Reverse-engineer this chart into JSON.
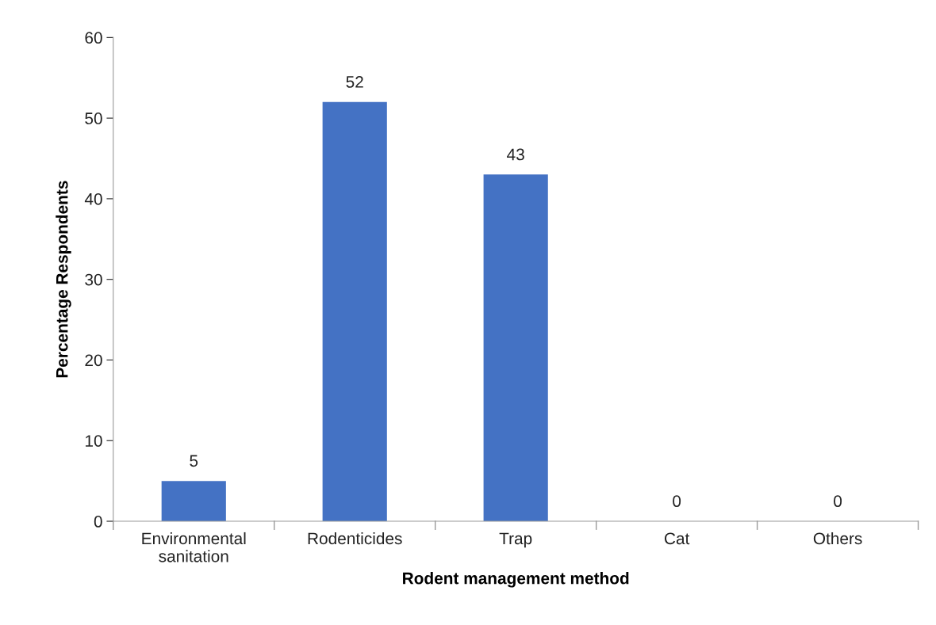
{
  "chart_data": {
    "type": "bar",
    "xlabel": "Rodent management method",
    "ylabel": "Percentage Respondents",
    "categories": [
      "Environmental\nsanitation",
      "Rodenticides",
      "Trap",
      "Cat",
      "Others"
    ],
    "values": [
      5,
      52,
      43,
      0,
      0
    ],
    "color": "#4472c4",
    "ylim": [
      0,
      60
    ],
    "yticks": [
      0,
      10,
      20,
      30,
      40,
      50,
      60
    ],
    "grid": false,
    "legend": false,
    "data_labels": true
  }
}
